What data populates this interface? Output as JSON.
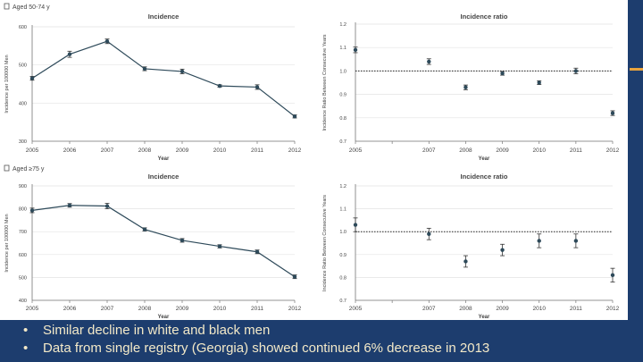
{
  "slide": {
    "bullets": [
      "Similar decline in white and black men",
      "Data from single registry (Georgia) showed continued 6% decrease in 2013"
    ],
    "bullet_glyph": "•",
    "colors": {
      "background": "#1d3d6e",
      "text": "#f3e9c8",
      "accent": "#e8a33d",
      "series": "#2e4a5a"
    }
  },
  "chart_data": [
    {
      "id": "a-incidence",
      "panel_label": "Aged 50-74 y",
      "type": "line",
      "title": "Incidence",
      "xlabel": "Year",
      "ylabel": "Incidence per 100000 Men",
      "x": [
        2005,
        2006,
        2007,
        2008,
        2009,
        2010,
        2011,
        2012
      ],
      "values": [
        465,
        528,
        562,
        490,
        483,
        445,
        442,
        365
      ],
      "errors": [
        5,
        8,
        6,
        5,
        6,
        3,
        6,
        4
      ],
      "xlim": [
        2005,
        2012
      ],
      "ylim": [
        300,
        600
      ],
      "yticks": [
        300,
        400,
        500,
        600
      ],
      "xtick_labels": [
        "2005",
        "2006",
        "2007",
        "2008",
        "2009",
        "2010",
        "2011",
        "2012"
      ],
      "ytick_labels": [
        "300",
        "400",
        "500",
        "600"
      ]
    },
    {
      "id": "a-ratio",
      "type": "scatter",
      "title": "Incidence ratio",
      "xlabel": "Year",
      "ylabel": "Incidence Ratio Between Consecutive Years",
      "x": [
        2005,
        2007,
        2008,
        2009,
        2010,
        2011,
        2012
      ],
      "values": [
        1.09,
        1.04,
        0.93,
        0.99,
        0.95,
        1.0,
        0.82
      ],
      "errors": [
        0.012,
        0.012,
        0.01,
        0.008,
        0.008,
        0.012,
        0.01
      ],
      "xlim": [
        2005,
        2012
      ],
      "ylim": [
        0.7,
        1.2
      ],
      "yticks": [
        0.7,
        0.8,
        0.9,
        1.0,
        1.1,
        1.2
      ],
      "reference_line": 1.0,
      "xtick_labels": [
        "2005",
        "2007",
        "2008",
        "2009",
        "2010",
        "2011",
        "2012"
      ],
      "ytick_labels": [
        "0.7",
        "0.8",
        "0.9",
        "1.0",
        "1.1",
        "1.2"
      ]
    },
    {
      "id": "c-incidence",
      "panel_label": "Aged ≥75 y",
      "type": "line",
      "title": "Incidence",
      "xlabel": "Year",
      "ylabel": "Incidence per 100000 Men",
      "x": [
        2005,
        2006,
        2007,
        2008,
        2009,
        2010,
        2011,
        2012
      ],
      "values": [
        793,
        815,
        812,
        710,
        662,
        636,
        612,
        503
      ],
      "errors": [
        10,
        8,
        12,
        7,
        8,
        7,
        8,
        8
      ],
      "xlim": [
        2005,
        2012
      ],
      "ylim": [
        400,
        900
      ],
      "yticks": [
        400,
        500,
        600,
        700,
        800,
        900
      ],
      "xtick_labels": [
        "2005",
        "2006",
        "2007",
        "2008",
        "2009",
        "2010",
        "2011",
        "2012"
      ],
      "ytick_labels": [
        "400",
        "500",
        "600",
        "700",
        "800",
        "900"
      ]
    },
    {
      "id": "c-ratio",
      "type": "scatter",
      "title": "Incidence ratio",
      "xlabel": "Year",
      "ylabel": "Incidence Ratio Between Consecutive Years",
      "x": [
        2005,
        2007,
        2008,
        2009,
        2010,
        2011,
        2012
      ],
      "values": [
        1.03,
        0.99,
        0.87,
        0.92,
        0.96,
        0.96,
        0.81
      ],
      "errors": [
        0.03,
        0.025,
        0.025,
        0.025,
        0.03,
        0.03,
        0.03
      ],
      "xlim": [
        2005,
        2012
      ],
      "ylim": [
        0.7,
        1.2
      ],
      "yticks": [
        0.7,
        0.8,
        0.9,
        1.0,
        1.1,
        1.2
      ],
      "reference_line": 1.0,
      "xtick_labels": [
        "2005",
        "2007",
        "2008",
        "2009",
        "2010",
        "2011",
        "2012"
      ],
      "ytick_labels": [
        "0.7",
        "0.8",
        "0.9",
        "1.0",
        "1.1",
        "1.2"
      ]
    }
  ]
}
